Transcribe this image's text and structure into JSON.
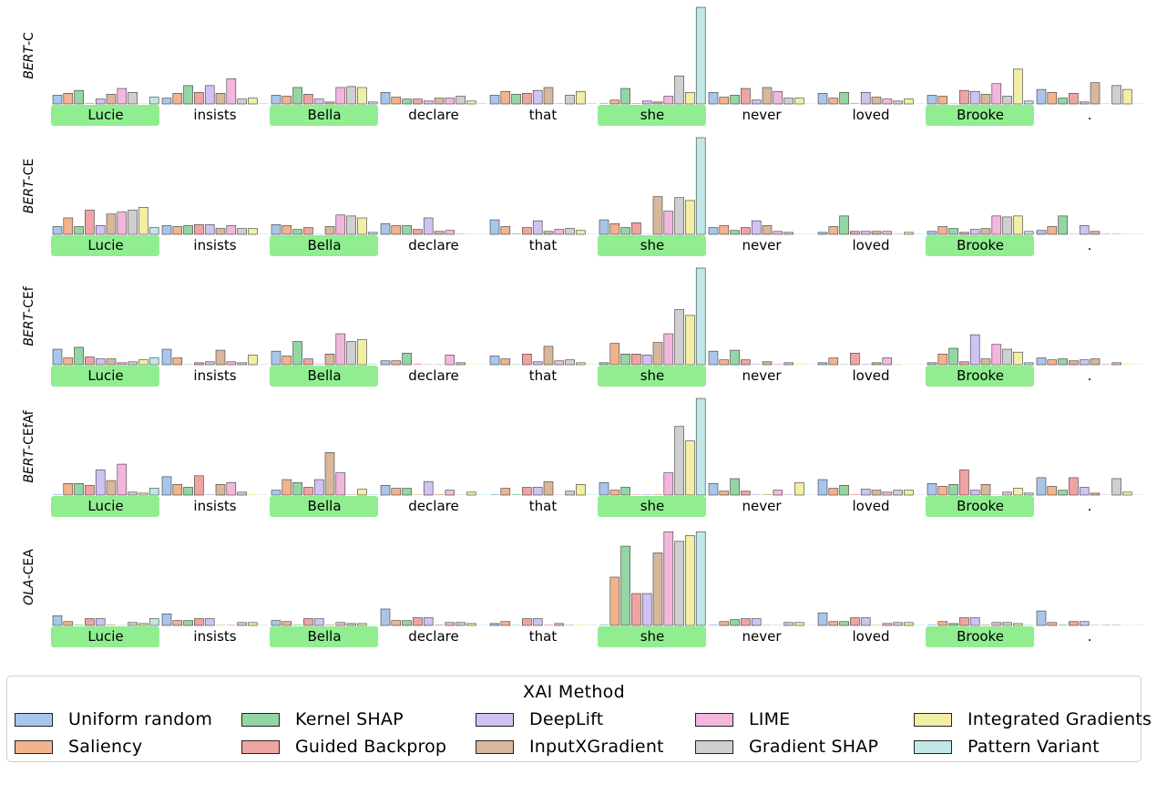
{
  "chart_data": {
    "type": "bar",
    "tokens": [
      "Lucie",
      "insists",
      "Bella",
      "declare",
      "that",
      "she",
      "never",
      "loved",
      "Brooke",
      "."
    ],
    "highlighted_tokens": [
      0,
      2,
      5,
      8
    ],
    "legend_title": "XAI Method",
    "methods": [
      {
        "name": "Uniform random",
        "color": "#a9c6ea"
      },
      {
        "name": "Saliency",
        "color": "#f2b38d"
      },
      {
        "name": "Kernel SHAP",
        "color": "#93d6a3"
      },
      {
        "name": "Guided Backprop",
        "color": "#f0a4a2"
      },
      {
        "name": "DeepLift",
        "color": "#d0c2f2"
      },
      {
        "name": "InputXGradient",
        "color": "#d8b79b"
      },
      {
        "name": "LIME",
        "color": "#f3b7de"
      },
      {
        "name": "Gradient SHAP",
        "color": "#cfcfcf"
      },
      {
        "name": "Integrated Gradients",
        "color": "#f2eea3"
      },
      {
        "name": "Pattern Variant",
        "color": "#bfe8e6"
      }
    ],
    "models": [
      {
        "label_italic": "BERT",
        "label_rest": "-C",
        "values": [
          [
            0.09,
            0.11,
            0.14,
            0.01,
            0.05,
            0.1,
            0.16,
            0.12,
            0.01,
            0.07
          ],
          [
            0.06,
            0.11,
            0.19,
            0.12,
            0.19,
            0.11,
            0.26,
            0.05,
            0.06,
            0.01
          ],
          [
            0.09,
            0.08,
            0.17,
            0.1,
            0.05,
            0.02,
            0.17,
            0.18,
            0.17,
            0.02
          ],
          [
            0.12,
            0.07,
            0.05,
            0.05,
            0.03,
            0.06,
            0.06,
            0.08,
            0.03,
            0.01
          ],
          [
            0.09,
            0.13,
            0.1,
            0.11,
            0.14,
            0.17,
            0.01,
            0.09,
            0.13,
            0.01
          ],
          [
            0.01,
            0.04,
            0.16,
            0.01,
            0.03,
            0.02,
            0.08,
            0.29,
            0.12,
            1.0
          ],
          [
            0.12,
            0.07,
            0.09,
            0.16,
            0.04,
            0.17,
            0.13,
            0.06,
            0.06,
            0.0
          ],
          [
            0.11,
            0.06,
            0.12,
            0.01,
            0.12,
            0.07,
            0.05,
            0.03,
            0.05,
            0.0
          ],
          [
            0.09,
            0.08,
            0.0,
            0.14,
            0.13,
            0.1,
            0.21,
            0.08,
            0.36,
            0.03
          ],
          [
            0.15,
            0.12,
            0.06,
            0.11,
            0.02,
            0.22,
            0.0,
            0.19,
            0.15,
            0.0
          ]
        ]
      },
      {
        "label_italic": "BERT",
        "label_rest": "-CE",
        "values": [
          [
            0.08,
            0.17,
            0.08,
            0.25,
            0.09,
            0.21,
            0.23,
            0.25,
            0.28,
            0.07
          ],
          [
            0.09,
            0.08,
            0.09,
            0.1,
            0.1,
            0.06,
            0.09,
            0.06,
            0.06,
            0.0
          ],
          [
            0.1,
            0.09,
            0.05,
            0.07,
            0.0,
            0.08,
            0.2,
            0.19,
            0.17,
            0.02
          ],
          [
            0.11,
            0.09,
            0.09,
            0.05,
            0.17,
            0.03,
            0.04,
            0.01,
            0.01,
            0.0
          ],
          [
            0.15,
            0.08,
            0.01,
            0.07,
            0.14,
            0.03,
            0.05,
            0.06,
            0.04,
            0.0
          ],
          [
            0.15,
            0.11,
            0.07,
            0.12,
            0.0,
            0.39,
            0.24,
            0.38,
            0.35,
            1.0
          ],
          [
            0.07,
            0.09,
            0.04,
            0.07,
            0.14,
            0.09,
            0.03,
            0.02,
            0.01,
            0.0
          ],
          [
            0.02,
            0.08,
            0.19,
            0.03,
            0.03,
            0.03,
            0.03,
            0.01,
            0.02,
            0.0
          ],
          [
            0.03,
            0.08,
            0.06,
            0.02,
            0.05,
            0.06,
            0.19,
            0.18,
            0.19,
            0.03
          ],
          [
            0.04,
            0.08,
            0.19,
            0.0,
            0.09,
            0.03,
            0.01,
            0.01,
            0.01,
            0.0
          ]
        ]
      },
      {
        "label_italic": "BERT",
        "label_rest": "-CEf",
        "values": [
          [
            0.16,
            0.07,
            0.18,
            0.08,
            0.06,
            0.06,
            0.02,
            0.03,
            0.05,
            0.07
          ],
          [
            0.16,
            0.07,
            0.0,
            0.02,
            0.03,
            0.15,
            0.03,
            0.02,
            0.1,
            0.0
          ],
          [
            0.14,
            0.09,
            0.24,
            0.06,
            0.01,
            0.11,
            0.32,
            0.24,
            0.26,
            0.01
          ],
          [
            0.04,
            0.04,
            0.12,
            0.01,
            0.0,
            0.0,
            0.1,
            0.02,
            0.0,
            0.0
          ],
          [
            0.09,
            0.06,
            0.0,
            0.11,
            0.03,
            0.19,
            0.04,
            0.05,
            0.02,
            0.0
          ],
          [
            0.02,
            0.22,
            0.11,
            0.11,
            0.1,
            0.23,
            0.32,
            0.57,
            0.51,
            1.0
          ],
          [
            0.14,
            0.05,
            0.15,
            0.05,
            0.01,
            0.03,
            0.01,
            0.02,
            0.01,
            0.0
          ],
          [
            0.02,
            0.07,
            0.0,
            0.12,
            0.01,
            0.02,
            0.07,
            0.0,
            0.0,
            0.0
          ],
          [
            0.02,
            0.11,
            0.17,
            0.03,
            0.31,
            0.06,
            0.21,
            0.16,
            0.13,
            0.02
          ],
          [
            0.07,
            0.05,
            0.06,
            0.04,
            0.05,
            0.06,
            0.01,
            0.02,
            0.01,
            0.0
          ]
        ]
      },
      {
        "label_italic": "BERT",
        "label_rest": "-CEfAf",
        "values": [
          [
            0.01,
            0.12,
            0.12,
            0.1,
            0.26,
            0.15,
            0.32,
            0.03,
            0.02,
            0.07
          ],
          [
            0.19,
            0.11,
            0.08,
            0.2,
            0.01,
            0.11,
            0.13,
            0.03,
            0.01,
            0.0
          ],
          [
            0.05,
            0.16,
            0.13,
            0.08,
            0.16,
            0.44,
            0.23,
            0.01,
            0.06,
            0.01
          ],
          [
            0.1,
            0.07,
            0.07,
            0.0,
            0.14,
            0.01,
            0.05,
            0.0,
            0.03,
            0.0
          ],
          [
            0.01,
            0.07,
            0.01,
            0.08,
            0.08,
            0.14,
            0.0,
            0.04,
            0.11,
            0.0
          ],
          [
            0.13,
            0.05,
            0.08,
            0.0,
            0.01,
            0.01,
            0.23,
            0.71,
            0.56,
            1.0
          ],
          [
            0.12,
            0.04,
            0.17,
            0.04,
            0.01,
            0.01,
            0.05,
            0.01,
            0.13,
            0.0
          ],
          [
            0.16,
            0.07,
            0.1,
            0.01,
            0.06,
            0.05,
            0.03,
            0.05,
            0.05,
            0.0
          ],
          [
            0.12,
            0.09,
            0.11,
            0.26,
            0.05,
            0.11,
            0.0,
            0.03,
            0.07,
            0.02
          ],
          [
            0.18,
            0.09,
            0.05,
            0.18,
            0.08,
            0.02,
            0.0,
            0.17,
            0.03,
            0.0
          ]
        ]
      },
      {
        "label_italic": "OLA",
        "label_rest": "-CEA",
        "values": [
          [
            0.1,
            0.04,
            0.01,
            0.07,
            0.07,
            0.01,
            0.0,
            0.03,
            0.02,
            0.07
          ],
          [
            0.12,
            0.05,
            0.05,
            0.07,
            0.07,
            0.0,
            0.01,
            0.03,
            0.03,
            0.0
          ],
          [
            0.05,
            0.04,
            0.01,
            0.07,
            0.07,
            0.01,
            0.03,
            0.02,
            0.02,
            0.0
          ],
          [
            0.17,
            0.05,
            0.05,
            0.08,
            0.08,
            0.01,
            0.03,
            0.03,
            0.02,
            0.0
          ],
          [
            0.02,
            0.04,
            0.0,
            0.07,
            0.07,
            0.01,
            0.02,
            0.01,
            0.01,
            0.0
          ],
          [
            0.01,
            0.5,
            0.82,
            0.33,
            0.33,
            0.75,
            0.97,
            0.87,
            0.93,
            0.97
          ],
          [
            0.01,
            0.04,
            0.06,
            0.07,
            0.07,
            0.0,
            0.0,
            0.03,
            0.03,
            0.0
          ],
          [
            0.13,
            0.04,
            0.04,
            0.08,
            0.08,
            0.0,
            0.02,
            0.03,
            0.03,
            0.0
          ],
          [
            0.01,
            0.04,
            0.02,
            0.08,
            0.08,
            0.01,
            0.03,
            0.03,
            0.02,
            0.01
          ],
          [
            0.15,
            0.03,
            0.01,
            0.04,
            0.04,
            0.0,
            0.01,
            0.01,
            0.0,
            0.0
          ]
        ]
      }
    ]
  }
}
